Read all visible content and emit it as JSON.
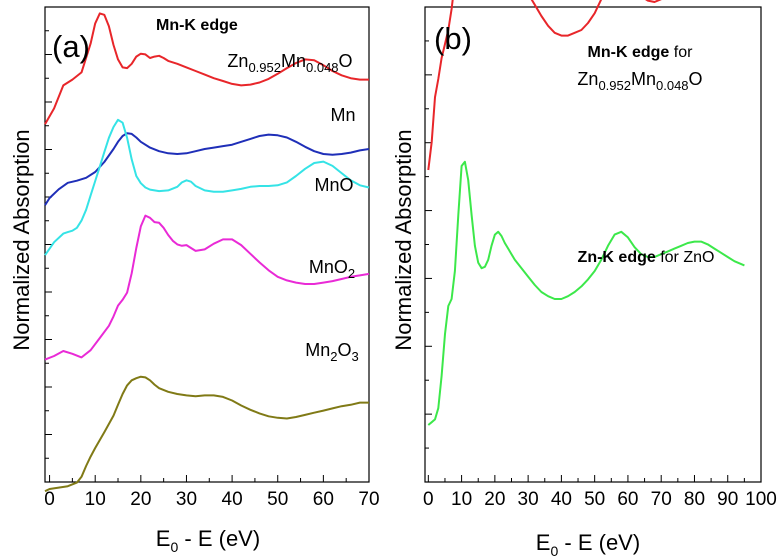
{
  "chart_data": [
    {
      "type": "line",
      "panel_label": "(a)",
      "title": "Mn-K edge",
      "xlabel": "E",
      "xlabel_sub": "0",
      "xlabel_tail": " - E (eV)",
      "ylabel": "Normalized Absorption",
      "xlim": [
        -1,
        70
      ],
      "x_ticks": [
        0,
        10,
        20,
        30,
        40,
        50,
        60,
        70
      ],
      "y_ticks": "none",
      "grid": false,
      "series": [
        {
          "name": "Zn0.952Mn0.048O",
          "label_parts": [
            [
              "Zn",
              ""
            ],
            [
              "0.952",
              "sub"
            ],
            [
              "Mn",
              ""
            ],
            [
              "0.048",
              "sub"
            ],
            [
              "O",
              ""
            ]
          ],
          "color": "#e8262a",
          "x": [
            -1,
            1,
            3,
            5,
            7,
            9,
            10,
            11,
            12,
            13,
            14,
            15,
            16,
            17,
            18,
            19,
            20,
            21,
            22,
            23,
            24,
            25,
            26,
            28,
            30,
            32,
            34,
            36,
            38,
            40,
            42,
            44,
            46,
            48,
            50,
            52,
            54,
            56,
            58,
            60,
            62,
            64,
            66,
            68,
            70
          ],
          "y": [
            0.08,
            0.3,
            0.62,
            0.7,
            0.8,
            1.2,
            1.48,
            1.62,
            1.6,
            1.44,
            1.18,
            0.98,
            0.87,
            0.86,
            0.92,
            1.02,
            1.06,
            1.05,
            1.0,
            1.02,
            1.03,
            1.0,
            0.96,
            0.92,
            0.87,
            0.82,
            0.77,
            0.72,
            0.68,
            0.64,
            0.62,
            0.63,
            0.66,
            0.71,
            0.78,
            0.86,
            0.93,
            0.98,
            0.97,
            0.9,
            0.82,
            0.76,
            0.72,
            0.7,
            0.7
          ]
        },
        {
          "name": "Mn",
          "label_parts": [
            [
              "Mn",
              ""
            ]
          ],
          "color": "#1f2fb8",
          "x": [
            -1,
            0,
            2,
            4,
            6,
            8,
            10,
            12,
            14,
            15,
            16,
            17,
            18,
            19,
            20,
            22,
            24,
            26,
            28,
            30,
            32,
            34,
            36,
            38,
            40,
            42,
            44,
            46,
            48,
            50,
            52,
            54,
            56,
            58,
            60,
            62,
            64,
            66,
            68,
            70
          ],
          "y": [
            -0.28,
            -0.18,
            -0.06,
            0.03,
            0.06,
            0.1,
            0.18,
            0.32,
            0.5,
            0.6,
            0.68,
            0.72,
            0.71,
            0.66,
            0.6,
            0.52,
            0.47,
            0.44,
            0.43,
            0.44,
            0.47,
            0.5,
            0.52,
            0.54,
            0.56,
            0.6,
            0.64,
            0.68,
            0.7,
            0.69,
            0.66,
            0.6,
            0.53,
            0.47,
            0.43,
            0.42,
            0.43,
            0.45,
            0.48,
            0.5
          ]
        },
        {
          "name": "MnO",
          "label_parts": [
            [
              "MnO",
              ""
            ]
          ],
          "color": "#35e3e6",
          "x": [
            -1,
            1,
            3,
            4,
            5,
            6,
            7,
            8,
            9,
            10,
            11,
            12,
            13,
            14,
            15,
            16,
            17,
            18,
            19,
            20,
            21,
            22,
            24,
            26,
            28,
            29,
            30,
            31,
            32,
            34,
            36,
            38,
            40,
            42,
            44,
            46,
            48,
            50,
            52,
            54,
            56,
            58,
            60,
            62,
            64,
            66,
            68,
            70
          ],
          "y": [
            -0.28,
            -0.1,
            0.02,
            0.04,
            0.06,
            0.1,
            0.2,
            0.35,
            0.55,
            0.75,
            0.95,
            1.15,
            1.35,
            1.5,
            1.6,
            1.56,
            1.35,
            1.05,
            0.82,
            0.72,
            0.66,
            0.63,
            0.61,
            0.62,
            0.67,
            0.73,
            0.76,
            0.74,
            0.68,
            0.62,
            0.6,
            0.6,
            0.62,
            0.64,
            0.67,
            0.68,
            0.68,
            0.69,
            0.73,
            0.82,
            0.92,
            1.0,
            1.02,
            0.96,
            0.86,
            0.76,
            0.69,
            0.66
          ]
        },
        {
          "name": "MnO2",
          "label_parts": [
            [
              "MnO",
              ""
            ],
            [
              "2",
              "sub"
            ]
          ],
          "color": "#e92ad6",
          "x": [
            -1,
            1,
            3,
            5,
            7,
            9,
            11,
            13,
            14,
            15,
            16,
            17,
            18,
            19,
            20,
            21,
            22,
            23,
            24,
            25,
            26,
            27,
            28,
            29,
            30,
            31,
            32,
            34,
            36,
            38,
            40,
            42,
            44,
            46,
            48,
            50,
            52,
            54,
            56,
            58,
            60,
            62,
            64,
            66,
            68,
            70
          ],
          "y": [
            -0.55,
            -0.5,
            -0.43,
            -0.47,
            -0.52,
            -0.42,
            -0.25,
            -0.08,
            0.05,
            0.2,
            0.28,
            0.38,
            0.65,
            1.0,
            1.3,
            1.45,
            1.42,
            1.36,
            1.35,
            1.28,
            1.18,
            1.1,
            1.05,
            1.03,
            1.04,
            1.0,
            0.96,
            0.98,
            1.06,
            1.12,
            1.12,
            1.04,
            0.92,
            0.8,
            0.69,
            0.6,
            0.55,
            0.52,
            0.5,
            0.5,
            0.52,
            0.54,
            0.57,
            0.6,
            0.62,
            0.64
          ]
        },
        {
          "name": "Mn2O3",
          "label_parts": [
            [
              "Mn",
              ""
            ],
            [
              "2",
              "sub"
            ],
            [
              "O",
              ""
            ],
            [
              "3",
              "sub"
            ]
          ],
          "color": "#807a16",
          "x": [
            -1,
            0,
            2,
            4,
            6,
            7,
            8,
            9,
            10,
            12,
            14,
            15,
            16,
            17,
            18,
            19,
            20,
            21,
            22,
            23,
            24,
            26,
            28,
            30,
            32,
            34,
            36,
            38,
            40,
            42,
            44,
            46,
            48,
            50,
            52,
            54,
            56,
            58,
            60,
            62,
            64,
            66,
            68,
            70
          ],
          "y": [
            -1.1,
            -1.07,
            -1.05,
            -1.03,
            -0.98,
            -0.9,
            -0.75,
            -0.62,
            -0.5,
            -0.28,
            -0.05,
            0.1,
            0.25,
            0.37,
            0.44,
            0.47,
            0.49,
            0.48,
            0.44,
            0.38,
            0.33,
            0.28,
            0.25,
            0.23,
            0.22,
            0.23,
            0.23,
            0.21,
            0.16,
            0.09,
            0.03,
            -0.02,
            -0.06,
            -0.08,
            -0.09,
            -0.07,
            -0.04,
            -0.01,
            0.02,
            0.05,
            0.08,
            0.1,
            0.13,
            0.13
          ]
        }
      ]
    },
    {
      "type": "line",
      "panel_label": "(b)",
      "xlabel": "E",
      "xlabel_sub": "0",
      "xlabel_tail": " - E (eV)",
      "ylabel": "Normalized Absorption",
      "xlim": [
        -1,
        100
      ],
      "x_ticks": [
        0,
        10,
        20,
        30,
        40,
        50,
        60,
        70,
        80,
        90,
        100
      ],
      "y_ticks": "none",
      "grid": false,
      "annotations": [
        {
          "parts": [
            [
              "Mn-K edge",
              "bold"
            ],
            [
              " for",
              ""
            ]
          ]
        },
        {
          "parts": [
            [
              "Zn",
              ""
            ],
            [
              "0.952",
              "sub"
            ],
            [
              "Mn",
              ""
            ],
            [
              "0.048",
              "sub"
            ],
            [
              "O",
              ""
            ]
          ]
        },
        {
          "parts": [
            [
              "Zn-K edge",
              "bold"
            ],
            [
              " for ZnO",
              ""
            ]
          ]
        }
      ],
      "series": [
        {
          "name": "Mn-K edge for Zn0.952Mn0.048O",
          "color": "#e8262a",
          "x": [
            0,
            1,
            2,
            3,
            4,
            5,
            6,
            7,
            8,
            9,
            10,
            11,
            12,
            13,
            14,
            15,
            16,
            17,
            18,
            19,
            20,
            21,
            22,
            23,
            24,
            25,
            26,
            27,
            28,
            30,
            32,
            34,
            36,
            38,
            40,
            42,
            44,
            46,
            48,
            50,
            52,
            54,
            56,
            58,
            60,
            62,
            64,
            66,
            68,
            70,
            72,
            74,
            76,
            78,
            80,
            82,
            84,
            86,
            88,
            90,
            92,
            95
          ],
          "y": [
            1.5,
            1.7,
            2.02,
            2.15,
            2.3,
            2.4,
            2.5,
            2.65,
            2.85,
            3.15,
            3.4,
            3.5,
            3.42,
            3.25,
            3.05,
            2.9,
            2.8,
            2.76,
            2.8,
            2.88,
            2.95,
            2.94,
            2.9,
            2.92,
            2.93,
            2.92,
            2.88,
            2.84,
            2.82,
            2.76,
            2.68,
            2.6,
            2.53,
            2.48,
            2.46,
            2.46,
            2.48,
            2.5,
            2.55,
            2.62,
            2.72,
            2.83,
            2.91,
            2.92,
            2.88,
            2.8,
            2.74,
            2.71,
            2.7,
            2.72,
            2.75,
            2.78,
            2.8,
            2.82,
            2.84,
            2.85,
            2.85,
            2.83,
            2.81,
            2.78,
            2.75,
            2.72
          ]
        },
        {
          "name": "Zn-K edge for ZnO",
          "color": "#3ce84a",
          "x": [
            0,
            1,
            2,
            3,
            4,
            5,
            6,
            7,
            8,
            9,
            10,
            11,
            12,
            13,
            14,
            15,
            16,
            17,
            18,
            19,
            20,
            21,
            22,
            23,
            24,
            25,
            26,
            28,
            30,
            32,
            34,
            36,
            38,
            40,
            42,
            44,
            46,
            48,
            50,
            52,
            54,
            56,
            58,
            60,
            62,
            64,
            66,
            68,
            70,
            72,
            74,
            76,
            78,
            80,
            82,
            84,
            86,
            88,
            90,
            92,
            95
          ],
          "y": [
            0.0,
            0.02,
            0.04,
            0.12,
            0.35,
            0.65,
            0.85,
            0.9,
            1.1,
            1.5,
            1.85,
            1.88,
            1.75,
            1.5,
            1.28,
            1.16,
            1.12,
            1.13,
            1.18,
            1.28,
            1.36,
            1.38,
            1.35,
            1.3,
            1.26,
            1.22,
            1.18,
            1.12,
            1.06,
            1.0,
            0.95,
            0.92,
            0.9,
            0.9,
            0.92,
            0.95,
            0.99,
            1.04,
            1.1,
            1.18,
            1.28,
            1.36,
            1.38,
            1.34,
            1.27,
            1.22,
            1.2,
            1.2,
            1.22,
            1.24,
            1.26,
            1.28,
            1.3,
            1.31,
            1.31,
            1.29,
            1.26,
            1.23,
            1.2,
            1.17,
            1.14
          ]
        }
      ]
    }
  ]
}
